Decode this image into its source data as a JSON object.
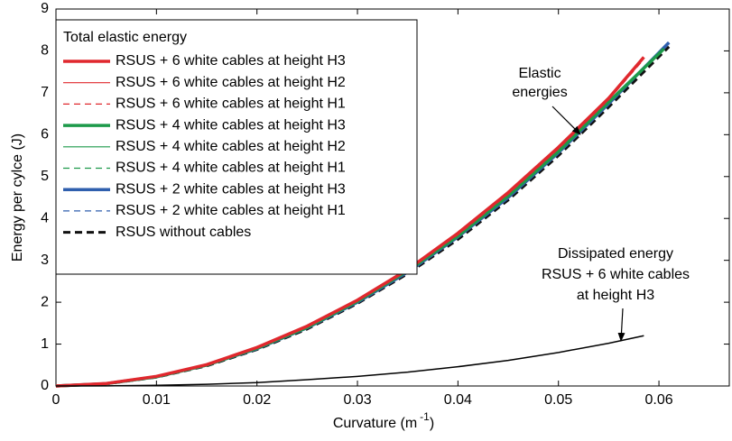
{
  "chart_data": {
    "type": "line",
    "ylabel": "Energy per cylce (J)",
    "xlabel": [
      "Curvature (m",
      "-1",
      ")"
    ],
    "legend_title": "Total elastic energy",
    "xlim": [
      0,
      0.067
    ],
    "ylim": [
      0,
      9
    ],
    "xticks": [
      0,
      0.01,
      0.02,
      0.03,
      0.04,
      0.05,
      0.06
    ],
    "yticks": [
      0,
      1,
      2,
      3,
      4,
      5,
      6,
      7,
      8,
      9
    ],
    "legend": "top-left",
    "series": [
      {
        "name": "RSUS + 6 white cables at height H3",
        "color": "#e0282e",
        "style": "thick",
        "x": [
          0,
          0.005,
          0.01,
          0.015,
          0.02,
          0.025,
          0.03,
          0.035,
          0.04,
          0.045,
          0.05,
          0.055,
          0.0585
        ],
        "values": [
          0,
          0.06,
          0.23,
          0.51,
          0.92,
          1.43,
          2.05,
          2.78,
          3.65,
          4.62,
          5.7,
          6.87,
          7.85
        ]
      },
      {
        "name": "RSUS + 6 white cables at height H2",
        "color": "#e0282e",
        "style": "thin",
        "x": [
          0,
          0.005,
          0.01,
          0.015,
          0.02,
          0.025,
          0.03,
          0.035,
          0.04,
          0.045,
          0.05,
          0.055,
          0.0585
        ],
        "values": [
          0,
          0.06,
          0.23,
          0.51,
          0.91,
          1.42,
          2.04,
          2.77,
          3.63,
          4.6,
          5.68,
          6.85,
          7.83
        ]
      },
      {
        "name": "RSUS + 6 white cables at height H1",
        "color": "#e0282e",
        "style": "dashed",
        "x": [
          0,
          0.005,
          0.01,
          0.015,
          0.02,
          0.025,
          0.03,
          0.035,
          0.04,
          0.045,
          0.05,
          0.055,
          0.0585
        ],
        "values": [
          0,
          0.06,
          0.22,
          0.5,
          0.9,
          1.41,
          2.03,
          2.76,
          3.61,
          4.58,
          5.66,
          6.83,
          7.8
        ]
      },
      {
        "name": "RSUS + 4 white cables at height H3",
        "color": "#1d9a4a",
        "style": "thick",
        "x": [
          0,
          0.005,
          0.01,
          0.015,
          0.02,
          0.025,
          0.03,
          0.035,
          0.04,
          0.045,
          0.05,
          0.055,
          0.0605
        ],
        "values": [
          0,
          0.055,
          0.22,
          0.5,
          0.9,
          1.4,
          2.02,
          2.75,
          3.58,
          4.54,
          5.6,
          6.78,
          8.05
        ]
      },
      {
        "name": "RSUS + 4 white cables at height H2",
        "color": "#1d9a4a",
        "style": "thin",
        "x": [
          0,
          0.005,
          0.01,
          0.015,
          0.02,
          0.025,
          0.03,
          0.035,
          0.04,
          0.045,
          0.05,
          0.055,
          0.0605
        ],
        "values": [
          0,
          0.055,
          0.22,
          0.5,
          0.9,
          1.4,
          2.01,
          2.74,
          3.57,
          4.53,
          5.59,
          6.77,
          8.03
        ]
      },
      {
        "name": "RSUS + 4 white cables at height H1",
        "color": "#1d9a4a",
        "style": "dashed",
        "x": [
          0,
          0.005,
          0.01,
          0.015,
          0.02,
          0.025,
          0.03,
          0.035,
          0.04,
          0.045,
          0.05,
          0.055,
          0.0605
        ],
        "values": [
          0,
          0.055,
          0.22,
          0.5,
          0.89,
          1.39,
          2.0,
          2.73,
          3.56,
          4.52,
          5.58,
          6.76,
          8.02
        ]
      },
      {
        "name": "RSUS + 2 white cables at height H3",
        "color": "#2f5fae",
        "style": "thick",
        "x": [
          0,
          0.005,
          0.01,
          0.015,
          0.02,
          0.025,
          0.03,
          0.035,
          0.04,
          0.045,
          0.05,
          0.055,
          0.061
        ],
        "values": [
          0,
          0.055,
          0.22,
          0.5,
          0.89,
          1.39,
          2.0,
          2.72,
          3.56,
          4.5,
          5.57,
          6.74,
          8.2
        ]
      },
      {
        "name": "RSUS + 2 white cables at height H1",
        "color": "#2f5fae",
        "style": "dashed",
        "x": [
          0,
          0.005,
          0.01,
          0.015,
          0.02,
          0.025,
          0.03,
          0.035,
          0.04,
          0.045,
          0.05,
          0.055,
          0.061
        ],
        "values": [
          0,
          0.055,
          0.22,
          0.5,
          0.89,
          1.39,
          2.0,
          2.72,
          3.55,
          4.5,
          5.56,
          6.73,
          8.18
        ]
      },
      {
        "name": "RSUS without cables",
        "color": "#111111",
        "style": "thickdashed",
        "x": [
          0,
          0.005,
          0.01,
          0.015,
          0.02,
          0.025,
          0.03,
          0.035,
          0.04,
          0.045,
          0.05,
          0.055,
          0.061
        ],
        "values": [
          0,
          0.05,
          0.21,
          0.48,
          0.87,
          1.36,
          1.97,
          2.68,
          3.5,
          4.44,
          5.5,
          6.66,
          8.1
        ]
      }
    ],
    "dissipated": {
      "color": "#000000",
      "x": [
        0,
        0.005,
        0.01,
        0.015,
        0.02,
        0.025,
        0.03,
        0.035,
        0.04,
        0.045,
        0.05,
        0.055,
        0.0585
      ],
      "values": [
        0,
        0.002,
        0.015,
        0.04,
        0.08,
        0.15,
        0.23,
        0.33,
        0.46,
        0.61,
        0.8,
        1.02,
        1.2
      ]
    },
    "annotations": [
      {
        "lines": [
          "Elastic",
          "energies"
        ]
      },
      {
        "lines": [
          "Dissipated energy",
          "RSUS + 6 white cables",
          "at height H3"
        ]
      }
    ]
  }
}
